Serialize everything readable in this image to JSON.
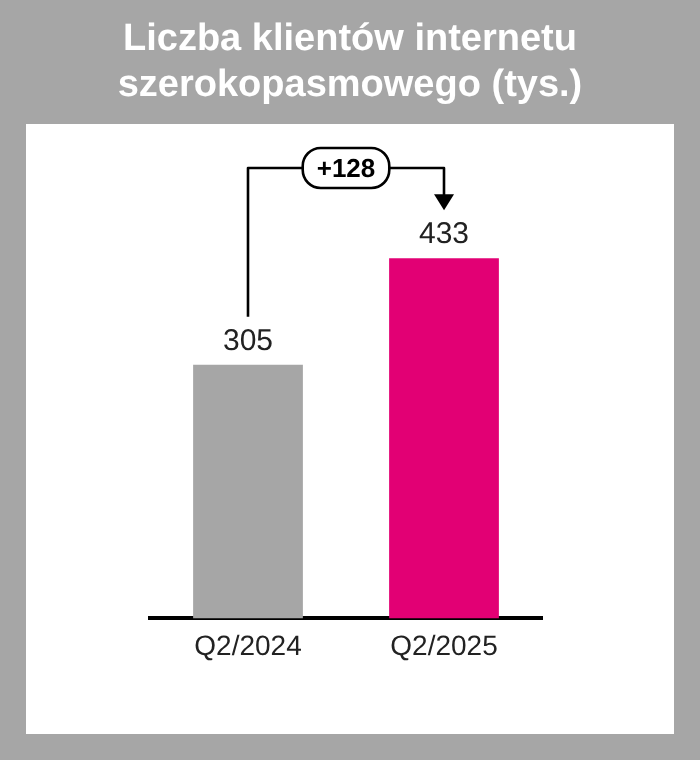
{
  "chart_data": {
    "type": "bar",
    "title": "Liczba klientów internetu szerokopasmowego (tys.)",
    "categories": [
      "Q2/2024",
      "Q2/2025"
    ],
    "values": [
      305,
      433
    ],
    "colors": [
      "#a6a6a6",
      "#e20074"
    ],
    "data_labels": true,
    "annotations": [
      "+128"
    ],
    "grid": false,
    "legend": false
  }
}
